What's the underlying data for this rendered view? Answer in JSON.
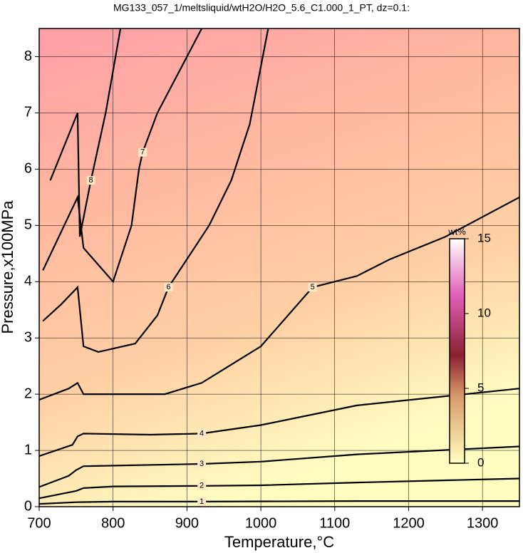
{
  "chart_data": {
    "type": "contour",
    "title": "MG133_057_1/meltsliquid/wtH2O/H2O_5.6_C1.000_1_PT, dz=0.1:",
    "xlabel": "Temperature,°C",
    "ylabel": "Pressure,x100MPa",
    "xlim": [
      700,
      1350
    ],
    "ylim": [
      0,
      8.5
    ],
    "xticks": [
      700,
      800,
      900,
      1000,
      1100,
      1200,
      1300
    ],
    "yticks": [
      0,
      1,
      2,
      3,
      4,
      5,
      6,
      7,
      8
    ],
    "grid": true,
    "colorbar": {
      "label": "wt%",
      "lim": [
        0,
        15
      ],
      "ticks": [
        0,
        5,
        10,
        15
      ]
    },
    "contours": [
      {
        "level": 1,
        "x": [
          700,
          750,
          800,
          920,
          1130,
          1350
        ],
        "y": [
          0.05,
          0.08,
          0.09,
          0.09,
          0.1,
          0.1
        ]
      },
      {
        "level": 2,
        "x": [
          700,
          750,
          760,
          800,
          920,
          1000,
          1130,
          1350
        ],
        "y": [
          0.15,
          0.28,
          0.33,
          0.36,
          0.37,
          0.38,
          0.43,
          0.5
        ]
      },
      {
        "level": 3,
        "x": [
          700,
          740,
          750,
          760,
          920,
          1000,
          1130,
          1350
        ],
        "y": [
          0.35,
          0.55,
          0.65,
          0.72,
          0.76,
          0.8,
          0.93,
          1.07
        ]
      },
      {
        "level": 4,
        "x": [
          700,
          745,
          752,
          760,
          850,
          920,
          1000,
          1130,
          1350
        ],
        "y": [
          0.9,
          1.1,
          1.25,
          1.3,
          1.28,
          1.3,
          1.45,
          1.8,
          2.1
        ]
      },
      {
        "level": 5,
        "x": [
          700,
          740,
          752,
          760,
          870,
          920,
          1000,
          1070,
          1130,
          1175,
          1250,
          1350
        ],
        "y": [
          1.9,
          2.1,
          2.2,
          2.0,
          2.0,
          2.2,
          2.85,
          3.9,
          4.1,
          4.4,
          4.8,
          5.5
        ]
      },
      {
        "level": 6,
        "x": [
          705,
          730,
          752,
          760,
          780,
          830,
          860,
          875,
          930,
          960,
          985,
          1010
        ],
        "y": [
          3.3,
          3.6,
          3.9,
          2.85,
          2.75,
          2.9,
          3.4,
          3.9,
          5.0,
          5.8,
          6.8,
          8.5
        ]
      },
      {
        "level": 7,
        "x": [
          705,
          752,
          760,
          800,
          825,
          835,
          840,
          860,
          900,
          920
        ],
        "y": [
          4.2,
          5.5,
          4.6,
          4.0,
          5.0,
          6.0,
          6.3,
          7.0,
          8.0,
          8.5
        ]
      },
      {
        "level": 8,
        "x": [
          715,
          752,
          755,
          770,
          790,
          810
        ],
        "y": [
          5.8,
          7.0,
          4.8,
          5.8,
          7.0,
          8.5
        ]
      }
    ]
  }
}
